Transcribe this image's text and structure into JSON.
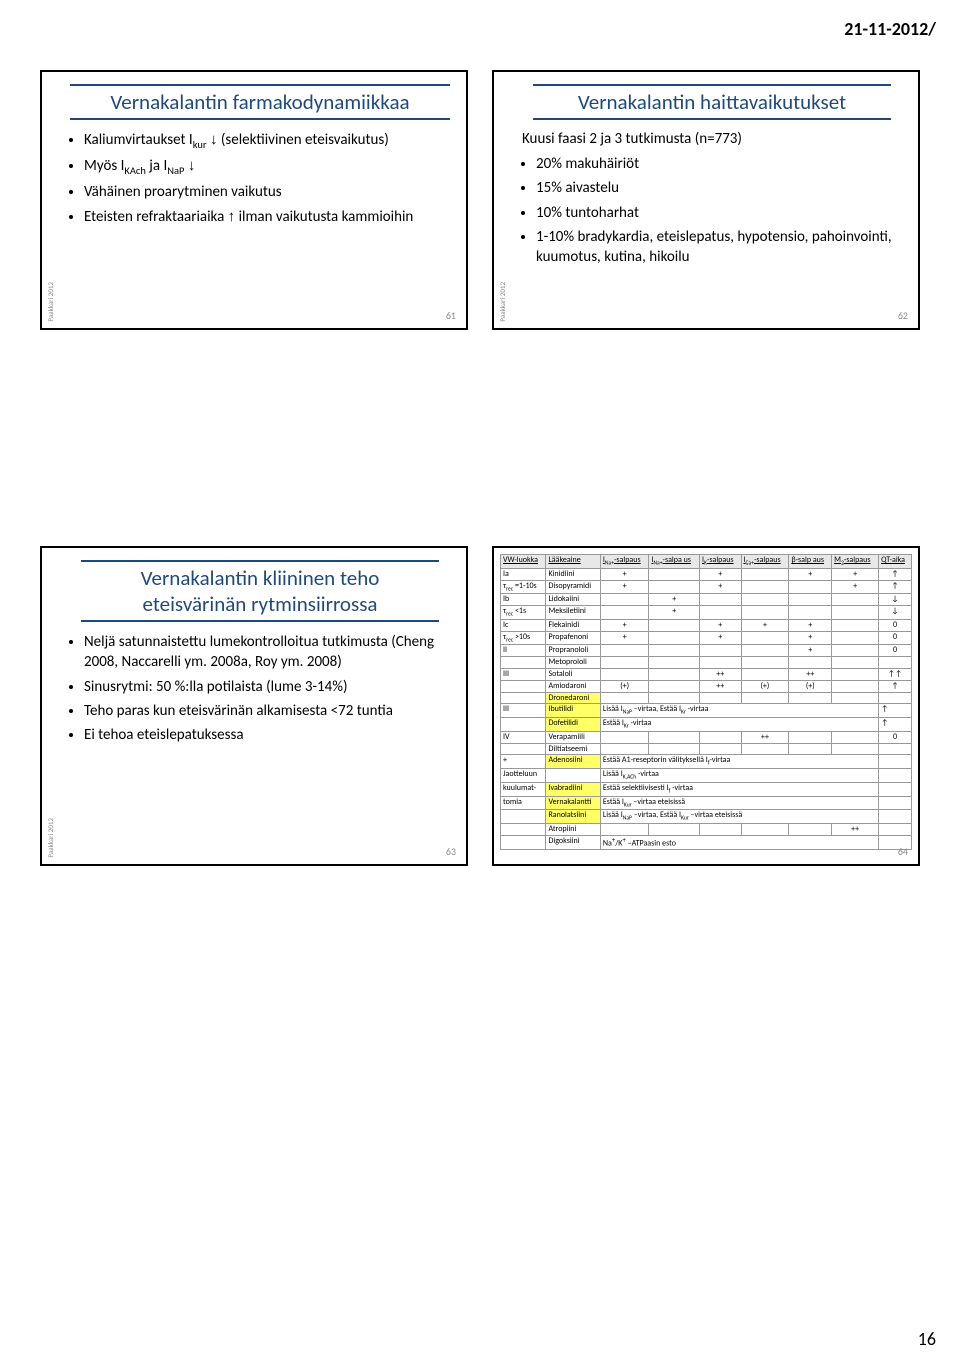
{
  "header_date": "21-11-2012/",
  "footer_page": "16",
  "side_label": "Paakkari 2012",
  "slide61": {
    "title": "Vernakalantin farmakodynamiikkaa",
    "bullets": [
      "Kaliumvirtaukset I<sub>kur</sub> <span class='arrow'>↓</span>   (selektiivinen eteisvaikutus)",
      "Myös I<sub>KAch</sub> ja I<sub>NaP</sub> <span class='arrow'>↓</span>",
      "Vähäinen proarytminen vaikutus",
      "Eteisten refraktaariaika <span class='arrow'>↑</span> ilman vaikutusta kammioihin"
    ],
    "num": "61"
  },
  "slide62": {
    "title": "Vernakalantin haittavaikutukset",
    "lead": "Kuusi faasi 2 ja 3 tutkimusta (n=773)",
    "bullets": [
      "20% makuhäiriöt",
      "15% aivastelu",
      "10% tuntoharhat",
      "1-10% bradykardia, eteislepatus, hypotensio, pahoinvointi, kuumotus, kutina, hikoilu"
    ],
    "num": "62"
  },
  "slide63": {
    "title": "Vernakalantin kliininen teho eteisvärinän rytminsiirrossa",
    "bullets": [
      "Neljä satunnaistettu lumekontrolloitua tutkimusta (Cheng 2008, Naccarelli ym. 2008a, Roy ym. 2008)",
      "Sinusrytmi: 50 %:lla potilaista (lume 3-14%)",
      "Teho paras kun eteisvärinän alkamisesta <72 tuntia",
      "Ei tehoa eteislepatuksessa"
    ],
    "num": "63"
  },
  "slide64": {
    "num": "64",
    "headers": [
      "VW-luokka",
      "Lääkeaine",
      "I<sub>Na+</sub>-salpaus",
      "I<sub>Na+</sub>-salpa us",
      "I<sub>K</sub>-salpaus",
      "I<sub>Ca+</sub>-salpaus",
      "β-salp aus",
      "M<sub>2</sub>-salpaus",
      "QT-aika"
    ],
    "rows": [
      [
        "Ia",
        "Kinidiini",
        "+",
        "",
        "+",
        "",
        "+",
        "+",
        "↑"
      ],
      [
        "τ<sub>rec</sub> =1-10s",
        "Disopyramidi",
        "+",
        "",
        "+",
        "",
        "",
        "+",
        "↑"
      ],
      [
        "Ib",
        "Lidokaiini",
        "",
        "+",
        "",
        "",
        "",
        "",
        "↓"
      ],
      [
        "τ<sub>rec</sub> <1s",
        "Meksiletiini",
        "",
        "+",
        "",
        "",
        "",
        "",
        "↓"
      ],
      [
        "Ic",
        "Flekainidi",
        "+",
        "",
        "+",
        "+",
        "+",
        "",
        "0"
      ],
      [
        "τ<sub>rec</sub> >10s",
        "Propafenoni",
        "+",
        "",
        "+",
        "",
        "+",
        "",
        "0"
      ],
      [
        "II",
        "Propranololi",
        "",
        "",
        "",
        "",
        "+",
        "",
        "0"
      ],
      [
        "",
        "Metoprololi",
        "",
        "",
        "",
        "",
        "",
        "",
        ""
      ],
      [
        "III",
        "Sotaloli",
        "",
        "",
        "++",
        "",
        "++",
        "",
        "↑↑"
      ],
      [
        "",
        "Amiodaroni",
        "(+)",
        "",
        "++",
        "(+)",
        "(+)",
        "",
        "↑"
      ],
      [
        "",
        "Dronedaroni",
        "",
        "",
        "",
        "",
        "",
        "",
        ""
      ],
      [
        "III",
        "Ibutilidi",
        "Lisää I<sub>NaP</sub> –virtaa, Estää I<sub>Kr</sub> -virtaa",
        "",
        "",
        "",
        "",
        "",
        "↑"
      ],
      [
        "",
        "Dofetilidi",
        "Estää I<sub>Kr</sub> -virtaa",
        "",
        "",
        "",
        "",
        "",
        "↑"
      ],
      [
        "IV",
        "Verapamiili",
        "",
        "",
        "",
        "++",
        "",
        "",
        "0"
      ],
      [
        "",
        "Diltiatseemi",
        "",
        "",
        "",
        "",
        "",
        "",
        ""
      ],
      [
        "+",
        "Adenosiini",
        "Estää A1-reseptorin välityksellä I<sub>f</sub>-virtaa",
        "",
        "",
        "",
        "",
        "",
        ""
      ],
      [
        "Jaotteluun",
        "",
        "Lisää I<sub>K,ACh</sub> -virtaa",
        "",
        "",
        "",
        "",
        "",
        ""
      ],
      [
        "kuulumat-",
        "Ivabradiini",
        "Estää selektiivisesti I<sub>f</sub> -virtaa",
        "",
        "",
        "",
        "",
        "",
        ""
      ],
      [
        "tomia",
        "Vernakalantti",
        "Estää I<sub>Kur</sub> –virtaa eteisissä",
        "",
        "",
        "",
        "",
        "",
        ""
      ],
      [
        "",
        "Ranolatsiini",
        "Lisää I<sub>NaP</sub> –virtaa, Estää I<sub>Kur</sub> –virtaa eteisissä",
        "",
        "",
        "",
        "",
        "",
        ""
      ],
      [
        "",
        "Atropiini",
        "",
        "",
        "",
        "",
        "",
        "++",
        ""
      ],
      [
        "",
        "Digoksiini",
        "Na<sup>+</sup>/K<sup>+</sup> –ATPaasin esto",
        "",
        "",
        "",
        "",
        "",
        ""
      ]
    ],
    "highlights": {
      "1": [
        "Dronedaroni",
        "Ibutilidi",
        "Dofetilidi",
        "Adenosiini",
        "Ivabradiini",
        "Vernakalantti",
        "Ranolatsiini"
      ]
    }
  }
}
